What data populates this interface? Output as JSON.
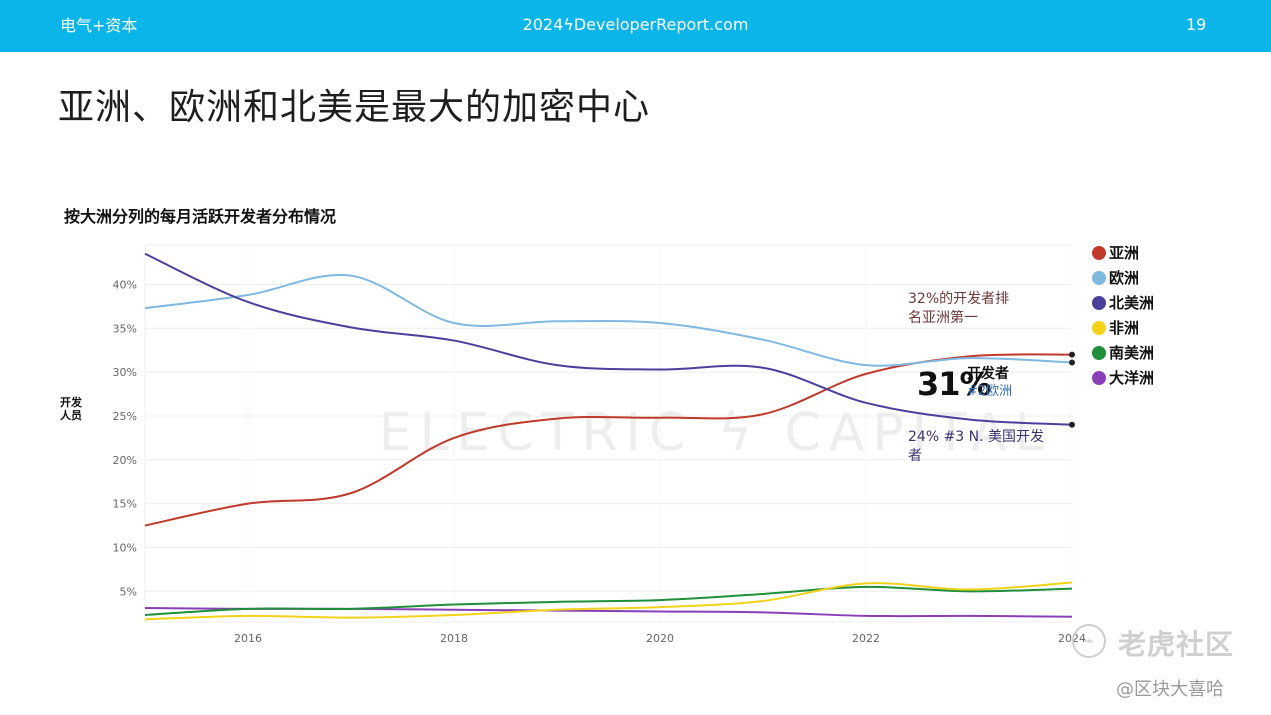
{
  "header": {
    "brand": "电气+资本",
    "site": "2024ϟDeveloperReport.com",
    "page_number": "19"
  },
  "page_title": "亚洲、欧洲和北美是最大的加密中心",
  "watermark": {
    "chart_mark": "ELECTRIC ϟ CAPITAL",
    "corner_main": "老虎社区",
    "corner_sub": "@区块大喜哈"
  },
  "colors": {
    "header_bg": "#09b5e9",
    "asia": "#c0392b",
    "europe": "#7fb9e0",
    "north_america": "#4b3f9c",
    "africa": "#f2d21a",
    "south_america": "#1f8f3a",
    "oceania": "#8a3fb8"
  },
  "chart_data": {
    "type": "line",
    "title": "按大洲分列的每月活跃开发者分布情况",
    "ylabel": "开发\n人员",
    "xlabel": "",
    "x_ticks": [
      "2016",
      "2018",
      "2020",
      "2022",
      "2024"
    ],
    "y_ticks": [
      "5%",
      "10%",
      "15%",
      "20%",
      "25%",
      "30%",
      "35%",
      "40%"
    ],
    "xlim": [
      2015.0,
      2024.0
    ],
    "ylim": [
      1.5,
      44.5
    ],
    "grid": true,
    "legend_position": "right",
    "series": [
      {
        "name": "亚洲",
        "color": "#c0392b",
        "points": [
          [
            2015.0,
            12.5
          ],
          [
            2016.0,
            15.0
          ],
          [
            2017.0,
            16.2
          ],
          [
            2018.0,
            22.5
          ],
          [
            2019.0,
            24.7
          ],
          [
            2020.0,
            24.8
          ],
          [
            2021.0,
            25.2
          ],
          [
            2022.0,
            29.8
          ],
          [
            2023.0,
            31.8
          ],
          [
            2024.0,
            32.0
          ]
        ]
      },
      {
        "name": "欧洲",
        "color": "#7fb9e0",
        "points": [
          [
            2015.0,
            37.3
          ],
          [
            2016.0,
            38.8
          ],
          [
            2017.0,
            41.0
          ],
          [
            2018.0,
            35.6
          ],
          [
            2019.0,
            35.8
          ],
          [
            2020.0,
            35.6
          ],
          [
            2021.0,
            33.7
          ],
          [
            2022.0,
            30.8
          ],
          [
            2023.0,
            31.6
          ],
          [
            2024.0,
            31.1
          ]
        ]
      },
      {
        "name": "北美洲",
        "color": "#4b3f9c",
        "points": [
          [
            2015.0,
            43.5
          ],
          [
            2016.0,
            38.0
          ],
          [
            2017.0,
            35.1
          ],
          [
            2018.0,
            33.6
          ],
          [
            2019.0,
            30.8
          ],
          [
            2020.0,
            30.3
          ],
          [
            2021.0,
            30.5
          ],
          [
            2022.0,
            26.5
          ],
          [
            2023.0,
            24.6
          ],
          [
            2024.0,
            24.0
          ]
        ]
      },
      {
        "name": "非洲",
        "color": "#f2d21a",
        "points": [
          [
            2015.0,
            1.8
          ],
          [
            2016.0,
            2.2
          ],
          [
            2017.0,
            2.0
          ],
          [
            2018.0,
            2.3
          ],
          [
            2019.0,
            2.9
          ],
          [
            2020.0,
            3.2
          ],
          [
            2021.0,
            3.9
          ],
          [
            2022.0,
            5.9
          ],
          [
            2023.0,
            5.2
          ],
          [
            2024.0,
            6.0
          ]
        ]
      },
      {
        "name": "南美洲",
        "color": "#1f8f3a",
        "points": [
          [
            2015.0,
            2.3
          ],
          [
            2016.0,
            3.0
          ],
          [
            2017.0,
            3.0
          ],
          [
            2018.0,
            3.5
          ],
          [
            2019.0,
            3.8
          ],
          [
            2020.0,
            4.0
          ],
          [
            2021.0,
            4.7
          ],
          [
            2022.0,
            5.5
          ],
          [
            2023.0,
            5.0
          ],
          [
            2024.0,
            5.3
          ]
        ]
      },
      {
        "name": "大洋洲",
        "color": "#8a3fb8",
        "points": [
          [
            2015.0,
            3.1
          ],
          [
            2016.0,
            3.0
          ],
          [
            2017.0,
            3.0
          ],
          [
            2018.0,
            2.9
          ],
          [
            2019.0,
            2.8
          ],
          [
            2020.0,
            2.7
          ],
          [
            2021.0,
            2.6
          ],
          [
            2022.0,
            2.2
          ],
          [
            2023.0,
            2.2
          ],
          [
            2024.0,
            2.1
          ]
        ]
      }
    ],
    "annotations": [
      {
        "text": "32%的开发者排",
        "color": "#6b3a3a"
      },
      {
        "text": "名亚洲第一",
        "color": "#6b3a3a"
      },
      {
        "text": "31%",
        "color": "#111111"
      },
      {
        "text": "开发者",
        "color": "#111111"
      },
      {
        "text": "#2欧洲",
        "color": "#3a6fb5"
      },
      {
        "text": "24% #3 N. 美国开发",
        "color": "#3b3470"
      },
      {
        "text": "者",
        "color": "#3b3470"
      }
    ]
  }
}
